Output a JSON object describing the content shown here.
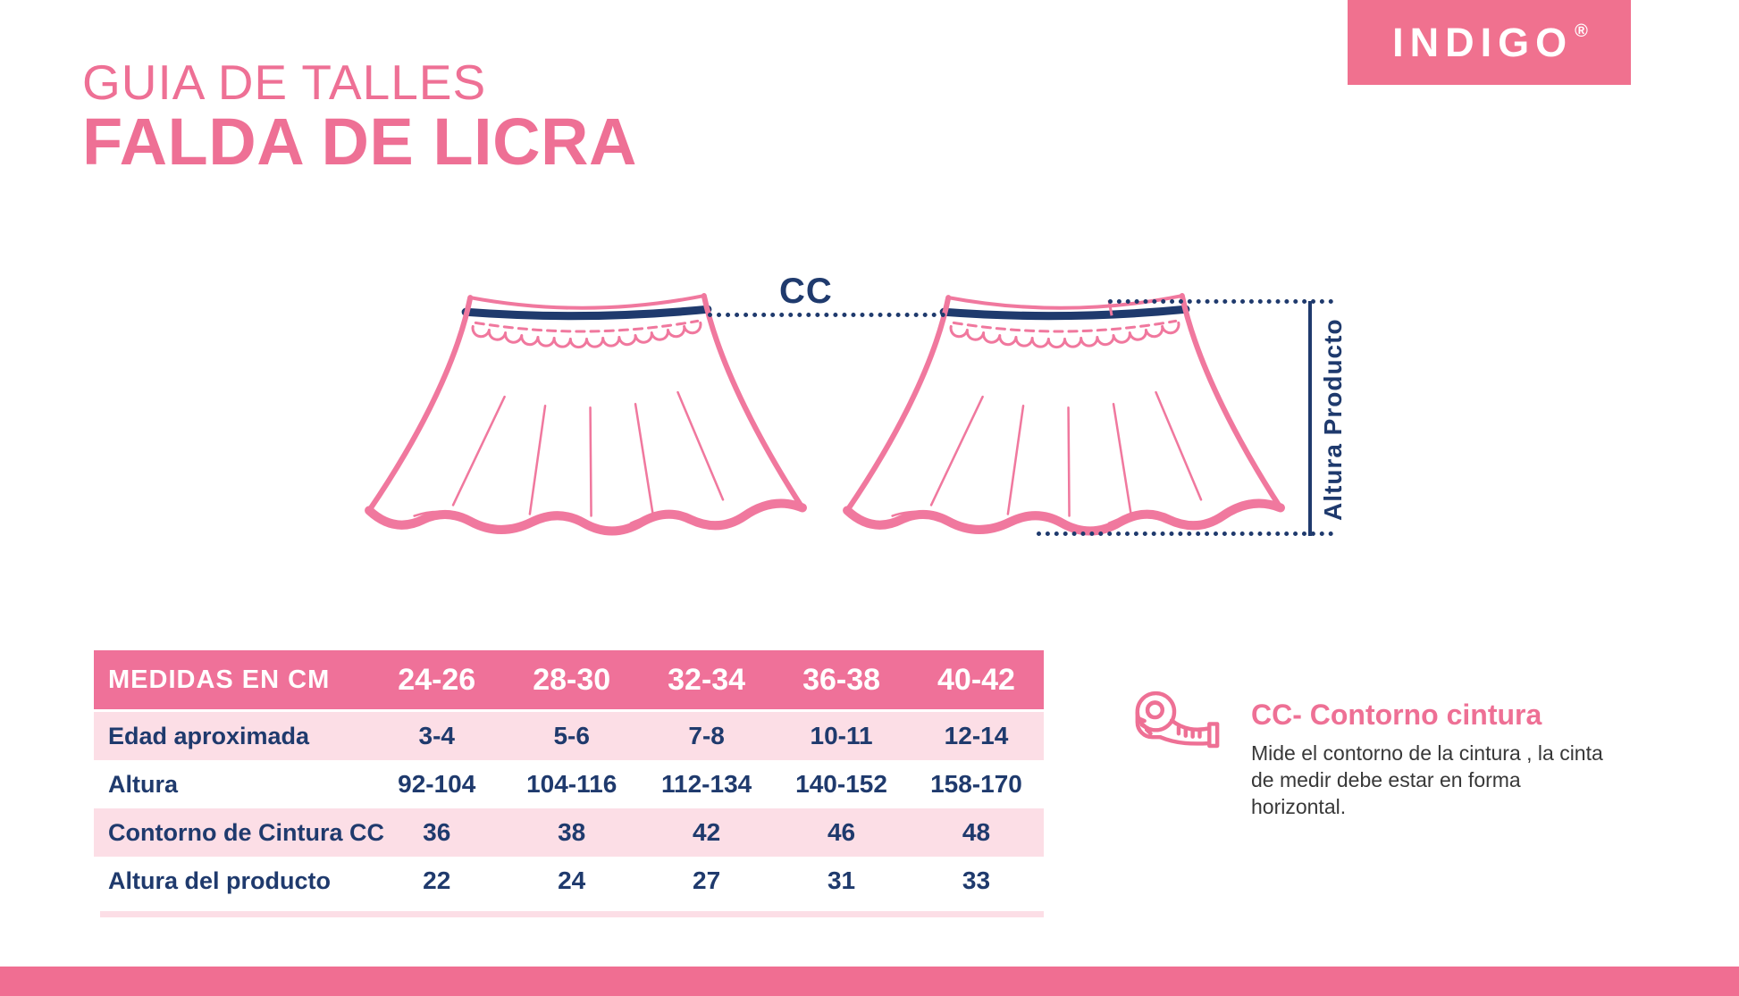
{
  "brand": {
    "logo_text": "INDIGO",
    "registered": "®"
  },
  "header": {
    "title_line1": "GUIA DE TALLES",
    "title_line2": "FALDA DE LICRA"
  },
  "diagram": {
    "cc_label": "CC",
    "altura_label": "Altura Producto"
  },
  "table": {
    "header": [
      "MEDIDAS EN CM",
      "24-26",
      "28-30",
      "32-34",
      "36-38",
      "40-42"
    ],
    "rows": [
      {
        "label": "Edad aproximada",
        "values": [
          "3-4",
          "5-6",
          "7-8",
          "10-11",
          "12-14"
        ]
      },
      {
        "label": "Altura",
        "values": [
          "92-104",
          "104-116",
          "112-134",
          "140-152",
          "158-170"
        ]
      },
      {
        "label": "Contorno de Cintura CC",
        "values": [
          "36",
          "38",
          "42",
          "46",
          "48"
        ]
      },
      {
        "label": "Altura del producto",
        "values": [
          "22",
          "24",
          "27",
          "31",
          "33"
        ]
      }
    ]
  },
  "info": {
    "title": "CC- Contorno cintura",
    "description": "Mide el contorno de la cintura , la cinta de medir debe estar en forma horizontal.",
    "icon": "measuring-tape-icon"
  },
  "colors": {
    "pink": "#ee7095",
    "light_pink": "#fcdee6",
    "navy": "#1f3a6d",
    "header_pink": "#ef7199",
    "footer_pink": "#f06e92",
    "text_dark": "#383838"
  }
}
